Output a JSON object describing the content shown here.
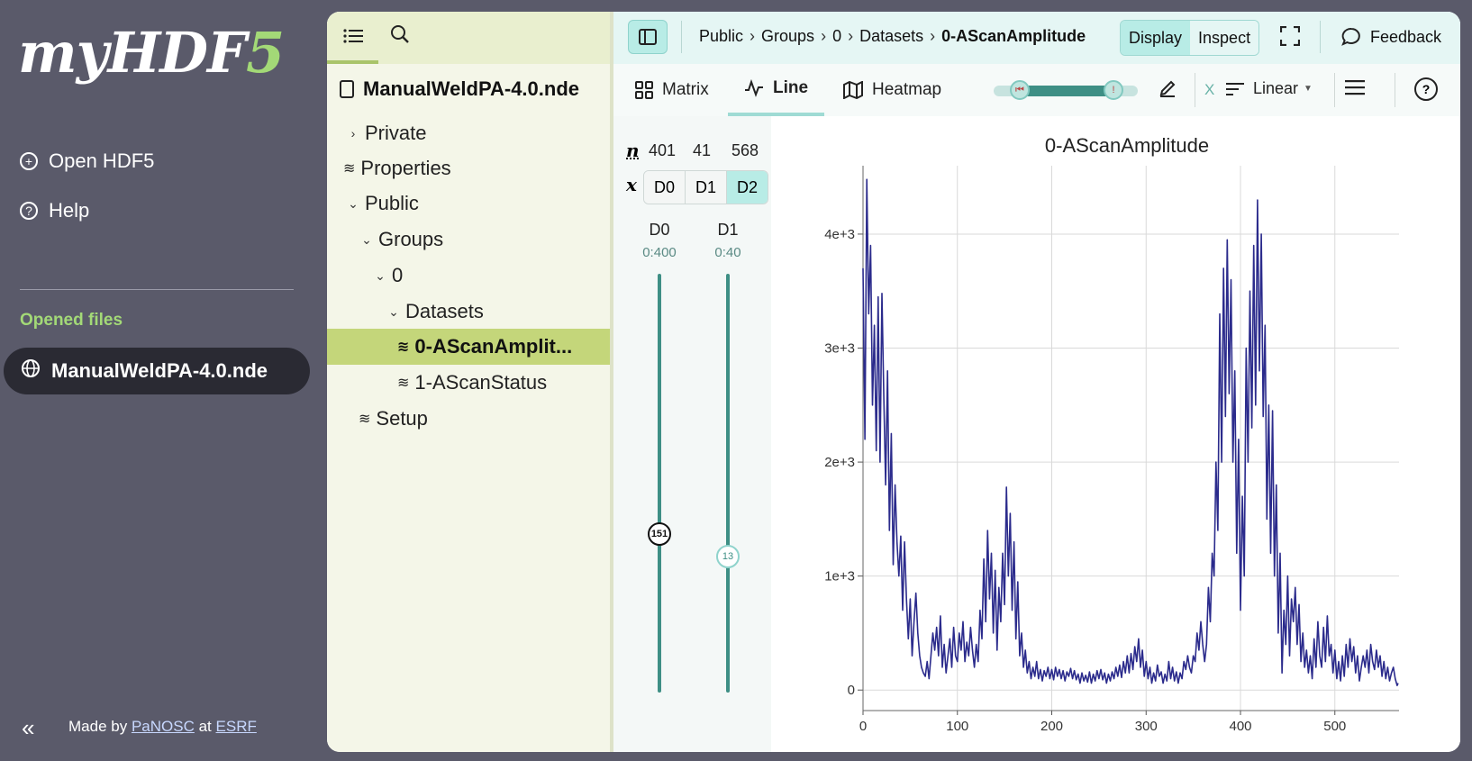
{
  "app": {
    "logo_main": "myHDF",
    "logo_accent": "5",
    "nav": [
      {
        "label": "Open HDF5",
        "icon": "plus-circle-icon"
      },
      {
        "label": "Help",
        "icon": "question-circle-icon"
      }
    ],
    "opened_files_label": "Opened files",
    "opened_file": "ManualWeldPA-4.0.nde",
    "footer": {
      "made_by": "Made by",
      "org1": "PaNOSC",
      "at": "at",
      "org2": "ESRF"
    }
  },
  "tree": {
    "file": "ManualWeldPA-4.0.nde",
    "items": [
      {
        "label": "Private",
        "kind": "group-collapsed"
      },
      {
        "label": "Properties",
        "kind": "dataset"
      },
      {
        "label": "Public",
        "kind": "group-expanded"
      },
      {
        "label": "Groups",
        "kind": "group-expanded"
      },
      {
        "label": "0",
        "kind": "group-expanded"
      },
      {
        "label": "Datasets",
        "kind": "group-expanded"
      },
      {
        "label": "0-AScanAmplit...",
        "kind": "dataset",
        "selected": true
      },
      {
        "label": "1-AScanStatus",
        "kind": "dataset"
      },
      {
        "label": "Setup",
        "kind": "dataset"
      }
    ]
  },
  "breadcrumb": [
    "Public",
    "Groups",
    "0",
    "Datasets",
    "0-AScanAmplitude"
  ],
  "header": {
    "display": "Display",
    "inspect": "Inspect",
    "feedback": "Feedback"
  },
  "toolbar": {
    "tabs": [
      "Matrix",
      "Line",
      "Heatmap"
    ],
    "active_tab": "Line",
    "axis_label": "X",
    "scale": "Linear"
  },
  "dims": {
    "n_label": "n",
    "x_label": "x",
    "sizes": [
      "401",
      "41",
      "568"
    ],
    "buttons": [
      "D0",
      "D1",
      "D2"
    ],
    "active": "D2",
    "sliders": [
      {
        "name": "D0",
        "range": "0:400",
        "value": "151",
        "fraction": 0.3775
      },
      {
        "name": "D1",
        "range": "0:40",
        "value": "13",
        "fraction": 0.325
      }
    ]
  },
  "chart_data": {
    "type": "line",
    "title": "0-AScanAmplitude",
    "xlim": [
      0,
      568
    ],
    "ylim": [
      -180,
      4600
    ],
    "x_ticks": [
      0,
      100,
      200,
      300,
      400,
      500
    ],
    "y_ticks": [
      0,
      1000,
      2000,
      3000,
      4000
    ],
    "y_tick_labels": [
      "0",
      "1e+3",
      "2e+3",
      "3e+3",
      "4e+3"
    ],
    "grid": true,
    "color": "#2b2b8c",
    "points": [
      [
        0,
        3700
      ],
      [
        2,
        2200
      ],
      [
        4,
        4480
      ],
      [
        6,
        3300
      ],
      [
        8,
        3900
      ],
      [
        10,
        2500
      ],
      [
        12,
        3200
      ],
      [
        14,
        2100
      ],
      [
        16,
        3450
      ],
      [
        18,
        2000
      ],
      [
        20,
        3480
      ],
      [
        22,
        2600
      ],
      [
        24,
        1800
      ],
      [
        26,
        2800
      ],
      [
        28,
        1400
      ],
      [
        30,
        2250
      ],
      [
        32,
        1100
      ],
      [
        34,
        1800
      ],
      [
        36,
        1300
      ],
      [
        38,
        1000
      ],
      [
        40,
        1350
      ],
      [
        42,
        700
      ],
      [
        44,
        1300
      ],
      [
        46,
        800
      ],
      [
        48,
        450
      ],
      [
        50,
        800
      ],
      [
        52,
        300
      ],
      [
        54,
        600
      ],
      [
        56,
        850
      ],
      [
        58,
        500
      ],
      [
        60,
        300
      ],
      [
        62,
        200
      ],
      [
        64,
        150
      ],
      [
        66,
        120
      ],
      [
        68,
        250
      ],
      [
        70,
        100
      ],
      [
        72,
        300
      ],
      [
        74,
        500
      ],
      [
        76,
        350
      ],
      [
        78,
        550
      ],
      [
        80,
        300
      ],
      [
        82,
        650
      ],
      [
        84,
        200
      ],
      [
        86,
        400
      ],
      [
        88,
        150
      ],
      [
        90,
        300
      ],
      [
        92,
        450
      ],
      [
        94,
        200
      ],
      [
        96,
        550
      ],
      [
        98,
        300
      ],
      [
        100,
        250
      ],
      [
        102,
        500
      ],
      [
        104,
        350
      ],
      [
        106,
        600
      ],
      [
        108,
        250
      ],
      [
        110,
        420
      ],
      [
        112,
        300
      ],
      [
        114,
        550
      ],
      [
        116,
        350
      ],
      [
        118,
        200
      ],
      [
        120,
        400
      ],
      [
        122,
        250
      ],
      [
        124,
        700
      ],
      [
        126,
        450
      ],
      [
        128,
        1150
      ],
      [
        130,
        600
      ],
      [
        132,
        1400
      ],
      [
        134,
        800
      ],
      [
        136,
        1200
      ],
      [
        138,
        500
      ],
      [
        140,
        1050
      ],
      [
        142,
        350
      ],
      [
        144,
        900
      ],
      [
        146,
        600
      ],
      [
        148,
        1200
      ],
      [
        150,
        750
      ],
      [
        152,
        1780
      ],
      [
        154,
        1000
      ],
      [
        156,
        1550
      ],
      [
        158,
        700
      ],
      [
        160,
        1300
      ],
      [
        162,
        450
      ],
      [
        164,
        950
      ],
      [
        166,
        300
      ],
      [
        168,
        500
      ],
      [
        170,
        200
      ],
      [
        172,
        350
      ],
      [
        174,
        150
      ],
      [
        176,
        250
      ],
      [
        178,
        100
      ],
      [
        180,
        200
      ],
      [
        182,
        120
      ],
      [
        184,
        250
      ],
      [
        186,
        100
      ],
      [
        188,
        180
      ],
      [
        190,
        80
      ],
      [
        192,
        170
      ],
      [
        194,
        120
      ],
      [
        196,
        200
      ],
      [
        198,
        100
      ],
      [
        200,
        180
      ],
      [
        202,
        90
      ],
      [
        204,
        200
      ],
      [
        206,
        120
      ],
      [
        208,
        180
      ],
      [
        210,
        100
      ],
      [
        212,
        170
      ],
      [
        214,
        80
      ],
      [
        216,
        160
      ],
      [
        218,
        120
      ],
      [
        220,
        190
      ],
      [
        222,
        100
      ],
      [
        224,
        170
      ],
      [
        226,
        90
      ],
      [
        228,
        140
      ],
      [
        230,
        60
      ],
      [
        232,
        150
      ],
      [
        234,
        80
      ],
      [
        236,
        130
      ],
      [
        238,
        70
      ],
      [
        240,
        160
      ],
      [
        242,
        60
      ],
      [
        244,
        140
      ],
      [
        246,
        80
      ],
      [
        248,
        170
      ],
      [
        250,
        100
      ],
      [
        252,
        180
      ],
      [
        254,
        90
      ],
      [
        256,
        150
      ],
      [
        258,
        60
      ],
      [
        260,
        140
      ],
      [
        262,
        80
      ],
      [
        264,
        160
      ],
      [
        266,
        100
      ],
      [
        268,
        200
      ],
      [
        270,
        120
      ],
      [
        272,
        220
      ],
      [
        274,
        110
      ],
      [
        276,
        250
      ],
      [
        278,
        150
      ],
      [
        280,
        300
      ],
      [
        282,
        150
      ],
      [
        284,
        320
      ],
      [
        286,
        180
      ],
      [
        288,
        380
      ],
      [
        290,
        250
      ],
      [
        292,
        450
      ],
      [
        294,
        200
      ],
      [
        296,
        350
      ],
      [
        298,
        120
      ],
      [
        300,
        250
      ],
      [
        302,
        100
      ],
      [
        304,
        200
      ],
      [
        306,
        60
      ],
      [
        308,
        150
      ],
      [
        310,
        80
      ],
      [
        312,
        220
      ],
      [
        314,
        120
      ],
      [
        316,
        160
      ],
      [
        318,
        60
      ],
      [
        320,
        140
      ],
      [
        322,
        80
      ],
      [
        324,
        250
      ],
      [
        326,
        100
      ],
      [
        328,
        200
      ],
      [
        330,
        80
      ],
      [
        332,
        160
      ],
      [
        334,
        60
      ],
      [
        336,
        150
      ],
      [
        338,
        100
      ],
      [
        340,
        250
      ],
      [
        342,
        180
      ],
      [
        344,
        300
      ],
      [
        346,
        200
      ],
      [
        348,
        150
      ],
      [
        350,
        300
      ],
      [
        352,
        250
      ],
      [
        354,
        500
      ],
      [
        356,
        350
      ],
      [
        358,
        600
      ],
      [
        360,
        400
      ],
      [
        362,
        250
      ],
      [
        364,
        400
      ],
      [
        366,
        900
      ],
      [
        368,
        600
      ],
      [
        370,
        1200
      ],
      [
        372,
        1000
      ],
      [
        374,
        2000
      ],
      [
        376,
        1400
      ],
      [
        378,
        3300
      ],
      [
        380,
        2000
      ],
      [
        382,
        3700
      ],
      [
        384,
        2400
      ],
      [
        386,
        3950
      ],
      [
        388,
        2600
      ],
      [
        390,
        3600
      ],
      [
        392,
        2000
      ],
      [
        394,
        2800
      ],
      [
        396,
        1200
      ],
      [
        398,
        2200
      ],
      [
        400,
        700
      ],
      [
        402,
        1700
      ],
      [
        404,
        1000
      ],
      [
        406,
        3000
      ],
      [
        408,
        2000
      ],
      [
        410,
        3500
      ],
      [
        412,
        2300
      ],
      [
        414,
        3900
      ],
      [
        416,
        2500
      ],
      [
        418,
        4300
      ],
      [
        420,
        2800
      ],
      [
        422,
        4000
      ],
      [
        424,
        2400
      ],
      [
        426,
        3200
      ],
      [
        428,
        1500
      ],
      [
        430,
        2500
      ],
      [
        432,
        1200
      ],
      [
        434,
        2450
      ],
      [
        436,
        1000
      ],
      [
        438,
        1800
      ],
      [
        440,
        500
      ],
      [
        442,
        1200
      ],
      [
        444,
        150
      ],
      [
        446,
        700
      ],
      [
        448,
        400
      ],
      [
        450,
        1000
      ],
      [
        452,
        300
      ],
      [
        454,
        800
      ],
      [
        456,
        600
      ],
      [
        458,
        900
      ],
      [
        460,
        400
      ],
      [
        462,
        750
      ],
      [
        464,
        250
      ],
      [
        466,
        500
      ],
      [
        468,
        200
      ],
      [
        470,
        350
      ],
      [
        472,
        150
      ],
      [
        474,
        300
      ],
      [
        476,
        100
      ],
      [
        478,
        450
      ],
      [
        480,
        200
      ],
      [
        482,
        600
      ],
      [
        484,
        300
      ],
      [
        486,
        200
      ],
      [
        488,
        550
      ],
      [
        490,
        250
      ],
      [
        492,
        650
      ],
      [
        494,
        300
      ],
      [
        496,
        400
      ],
      [
        498,
        150
      ],
      [
        500,
        350
      ],
      [
        502,
        100
      ],
      [
        504,
        250
      ],
      [
        506,
        80
      ],
      [
        508,
        300
      ],
      [
        510,
        120
      ],
      [
        512,
        400
      ],
      [
        514,
        200
      ],
      [
        516,
        450
      ],
      [
        518,
        250
      ],
      [
        520,
        380
      ],
      [
        522,
        150
      ],
      [
        524,
        300
      ],
      [
        526,
        80
      ],
      [
        528,
        200
      ],
      [
        530,
        300
      ],
      [
        532,
        200
      ],
      [
        534,
        350
      ],
      [
        536,
        150
      ],
      [
        538,
        400
      ],
      [
        540,
        250
      ],
      [
        542,
        180
      ],
      [
        544,
        350
      ],
      [
        546,
        200
      ],
      [
        548,
        300
      ],
      [
        550,
        120
      ],
      [
        552,
        250
      ],
      [
        554,
        100
      ],
      [
        556,
        200
      ],
      [
        558,
        80
      ],
      [
        560,
        150
      ],
      [
        562,
        200
      ],
      [
        564,
        100
      ],
      [
        566,
        40
      ],
      [
        567,
        60
      ]
    ]
  }
}
